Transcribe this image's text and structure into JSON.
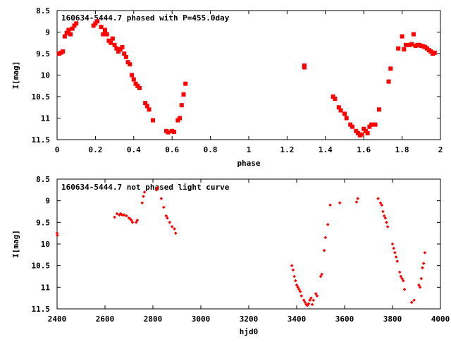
{
  "chart_data": [
    {
      "type": "scatter",
      "title": "160634-5444.7 phased with P=455.0day",
      "xlabel": "phase",
      "ylabel": "I[mag]",
      "xlim": [
        0,
        2
      ],
      "ylim": [
        11.5,
        8.5
      ],
      "y_inverted": true,
      "grid": false,
      "marker": "filled-square",
      "x_ticks": [
        0,
        0.2,
        0.4,
        0.6,
        0.8,
        1,
        1.2,
        1.4,
        1.6,
        1.8,
        2
      ],
      "x_tick_labels": [
        "0",
        "0.2",
        "0.4",
        "0.6",
        "0.8",
        "1",
        "1.2",
        "1.4",
        "1.6",
        "1.8",
        "2"
      ],
      "y_ticks": [
        8.5,
        9,
        9.5,
        10,
        10.5,
        11,
        11.5
      ],
      "y_tick_labels": [
        "8.5",
        "9",
        "9.5",
        "10",
        "10.5",
        "11",
        "11.5"
      ],
      "series": [
        {
          "color": "#ff0000",
          "points": [
            [
              0.01,
              9.5
            ],
            [
              0.02,
              9.48
            ],
            [
              0.03,
              9.45
            ],
            [
              0.04,
              9.1
            ],
            [
              0.05,
              9.02
            ],
            [
              0.06,
              8.95
            ],
            [
              0.07,
              9.05
            ],
            [
              0.08,
              8.92
            ],
            [
              0.09,
              8.85
            ],
            [
              0.1,
              8.8
            ],
            [
              0.19,
              8.85
            ],
            [
              0.2,
              8.8
            ],
            [
              0.21,
              8.75
            ],
            [
              0.23,
              8.88
            ],
            [
              0.24,
              9.05
            ],
            [
              0.25,
              8.95
            ],
            [
              0.26,
              9.05
            ],
            [
              0.27,
              9.2
            ],
            [
              0.28,
              9.25
            ],
            [
              0.29,
              9.15
            ],
            [
              0.3,
              9.3
            ],
            [
              0.31,
              9.38
            ],
            [
              0.32,
              9.45
            ],
            [
              0.33,
              9.4
            ],
            [
              0.34,
              9.35
            ],
            [
              0.35,
              9.5
            ],
            [
              0.36,
              9.58
            ],
            [
              0.37,
              9.7
            ],
            [
              0.38,
              9.75
            ],
            [
              0.39,
              10.0
            ],
            [
              0.4,
              10.1
            ],
            [
              0.41,
              10.2
            ],
            [
              0.42,
              10.25
            ],
            [
              0.43,
              10.3
            ],
            [
              0.46,
              10.65
            ],
            [
              0.47,
              10.72
            ],
            [
              0.48,
              10.8
            ],
            [
              0.5,
              11.05
            ],
            [
              0.57,
              11.3
            ],
            [
              0.58,
              11.33
            ],
            [
              0.6,
              11.3
            ],
            [
              0.61,
              11.32
            ],
            [
              0.63,
              11.05
            ],
            [
              0.64,
              11.0
            ],
            [
              0.65,
              10.7
            ],
            [
              0.66,
              10.45
            ],
            [
              0.67,
              10.2
            ],
            [
              1.29,
              9.78
            ],
            [
              1.29,
              9.82
            ],
            [
              1.44,
              10.5
            ],
            [
              1.45,
              10.55
            ],
            [
              1.47,
              10.75
            ],
            [
              1.48,
              10.82
            ],
            [
              1.5,
              10.9
            ],
            [
              1.51,
              11.0
            ],
            [
              1.53,
              11.15
            ],
            [
              1.54,
              11.2
            ],
            [
              1.56,
              11.3
            ],
            [
              1.57,
              11.35
            ],
            [
              1.58,
              11.4
            ],
            [
              1.59,
              11.38
            ],
            [
              1.6,
              11.25
            ],
            [
              1.61,
              11.3
            ],
            [
              1.62,
              11.35
            ],
            [
              1.63,
              11.2
            ],
            [
              1.64,
              11.15
            ],
            [
              1.66,
              11.15
            ],
            [
              1.68,
              10.8
            ],
            [
              1.73,
              10.15
            ],
            [
              1.74,
              9.85
            ],
            [
              1.78,
              9.38
            ],
            [
              1.8,
              9.1
            ],
            [
              1.81,
              9.4
            ],
            [
              1.82,
              9.3
            ],
            [
              1.84,
              9.3
            ],
            [
              1.85,
              9.28
            ],
            [
              1.86,
              9.05
            ],
            [
              1.87,
              9.32
            ],
            [
              1.88,
              9.3
            ],
            [
              1.89,
              9.3
            ],
            [
              1.9,
              9.32
            ],
            [
              1.91,
              9.33
            ],
            [
              1.92,
              9.35
            ],
            [
              1.93,
              9.38
            ],
            [
              1.94,
              9.42
            ],
            [
              1.95,
              9.45
            ],
            [
              1.96,
              9.5
            ],
            [
              1.97,
              9.48
            ]
          ]
        }
      ]
    },
    {
      "type": "scatter",
      "title": "160634-5444.7 not phased light curve",
      "xlabel": "hjd0",
      "ylabel": "I[mag]",
      "xlim": [
        2400,
        4000
      ],
      "ylim": [
        11.5,
        8.5
      ],
      "y_inverted": true,
      "grid": false,
      "marker": "small-diamond",
      "x_ticks": [
        2400,
        2600,
        2800,
        3000,
        3200,
        3400,
        3600,
        3800,
        4000
      ],
      "x_tick_labels": [
        "2400",
        "2600",
        "2800",
        "3000",
        "3200",
        "3400",
        "3600",
        "3800",
        "4000"
      ],
      "y_ticks": [
        8.5,
        9,
        9.5,
        10,
        10.5,
        11,
        11.5
      ],
      "y_tick_labels": [
        "8.5",
        "9",
        "9.5",
        "10",
        "10.5",
        "11",
        "11.5"
      ],
      "series": [
        {
          "color": "#ff0000",
          "points": [
            [
              2400,
              9.75
            ],
            [
              2401,
              9.8
            ],
            [
              2640,
              9.38
            ],
            [
              2650,
              9.3
            ],
            [
              2660,
              9.33
            ],
            [
              2665,
              9.3
            ],
            [
              2670,
              9.32
            ],
            [
              2675,
              9.33
            ],
            [
              2680,
              9.33
            ],
            [
              2690,
              9.35
            ],
            [
              2700,
              9.4
            ],
            [
              2705,
              9.42
            ],
            [
              2710,
              9.45
            ],
            [
              2715,
              9.5
            ],
            [
              2730,
              9.5
            ],
            [
              2735,
              9.45
            ],
            [
              2755,
              9.05
            ],
            [
              2760,
              8.9
            ],
            [
              2765,
              8.8
            ],
            [
              2815,
              8.75
            ],
            [
              2820,
              8.7
            ],
            [
              2835,
              8.95
            ],
            [
              2845,
              9.15
            ],
            [
              2855,
              9.35
            ],
            [
              2860,
              9.4
            ],
            [
              2870,
              9.5
            ],
            [
              2880,
              9.6
            ],
            [
              2890,
              9.65
            ],
            [
              2895,
              9.75
            ],
            [
              3380,
              10.5
            ],
            [
              3385,
              10.6
            ],
            [
              3390,
              10.75
            ],
            [
              3395,
              10.85
            ],
            [
              3400,
              10.95
            ],
            [
              3405,
              11.0
            ],
            [
              3410,
              11.05
            ],
            [
              3415,
              11.1
            ],
            [
              3420,
              11.2
            ],
            [
              3430,
              11.3
            ],
            [
              3435,
              11.35
            ],
            [
              3440,
              11.4
            ],
            [
              3445,
              11.42
            ],
            [
              3450,
              11.38
            ],
            [
              3455,
              11.3
            ],
            [
              3460,
              11.25
            ],
            [
              3465,
              11.4
            ],
            [
              3470,
              11.3
            ],
            [
              3480,
              11.15
            ],
            [
              3485,
              11.2
            ],
            [
              3500,
              10.75
            ],
            [
              3505,
              10.7
            ],
            [
              3515,
              10.15
            ],
            [
              3520,
              9.85
            ],
            [
              3530,
              9.55
            ],
            [
              3540,
              9.1
            ],
            [
              3580,
              9.05
            ],
            [
              3650,
              9.03
            ],
            [
              3655,
              8.95
            ],
            [
              3740,
              8.95
            ],
            [
              3750,
              9.05
            ],
            [
              3755,
              9.1
            ],
            [
              3760,
              9.25
            ],
            [
              3765,
              9.35
            ],
            [
              3770,
              9.4
            ],
            [
              3775,
              9.5
            ],
            [
              3780,
              9.6
            ],
            [
              3800,
              10.0
            ],
            [
              3805,
              10.1
            ],
            [
              3810,
              10.2
            ],
            [
              3815,
              10.3
            ],
            [
              3820,
              10.4
            ],
            [
              3830,
              10.65
            ],
            [
              3835,
              10.75
            ],
            [
              3840,
              10.8
            ],
            [
              3845,
              10.85
            ],
            [
              3850,
              11.05
            ],
            [
              3880,
              11.35
            ],
            [
              3890,
              11.3
            ],
            [
              3910,
              10.95
            ],
            [
              3915,
              11.0
            ],
            [
              3920,
              10.8
            ],
            [
              3925,
              10.55
            ],
            [
              3930,
              10.45
            ],
            [
              3935,
              10.2
            ]
          ]
        }
      ]
    }
  ]
}
